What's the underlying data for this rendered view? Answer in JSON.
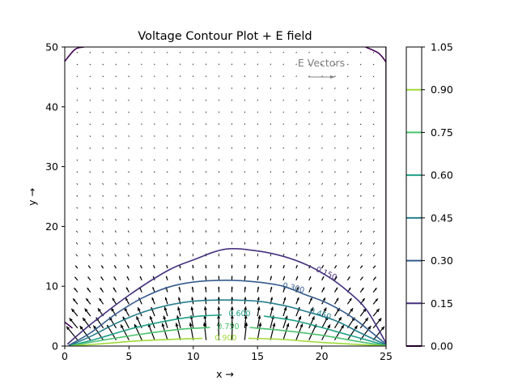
{
  "chart_data": {
    "type": "contour",
    "title": "Voltage Contour Plot + E field",
    "xlabel": "x →",
    "ylabel": "y →",
    "xlim": [
      0,
      25
    ],
    "ylim": [
      0,
      50
    ],
    "x_ticks": [
      "0",
      "5",
      "10",
      "15",
      "20",
      "25"
    ],
    "y_ticks": [
      "0",
      "10",
      "20",
      "30",
      "40",
      "50"
    ],
    "grid": false,
    "quiver_key_label": "E Vectors",
    "levels": [
      0.0,
      0.15,
      0.3,
      0.45,
      0.6,
      0.75,
      0.9
    ],
    "colorbar": {
      "range": [
        0.0,
        1.05
      ],
      "ticks": [
        "0.00",
        "0.15",
        "0.30",
        "0.45",
        "0.60",
        "0.75",
        "0.90",
        "1.05"
      ],
      "level_colors": [
        "#440154",
        "#46327e",
        "#365c8d",
        "#277f8e",
        "#1fa187",
        "#4ac16d",
        "#a0da39"
      ]
    },
    "contour_labels": [
      {
        "text": "0.150",
        "level": 0.15
      },
      {
        "text": "0.300",
        "level": 0.3
      },
      {
        "text": "0.450",
        "level": 0.45
      },
      {
        "text": "0.600",
        "level": 0.6
      },
      {
        "text": "0.750",
        "level": 0.75
      },
      {
        "text": "0.900",
        "level": 0.9
      }
    ],
    "contours": [
      {
        "level": 0.15,
        "color": "#46327e",
        "points": [
          [
            0.2,
            0.3
          ],
          [
            2,
            3.6
          ],
          [
            5,
            8.5
          ],
          [
            8,
            12.6
          ],
          [
            10,
            14.4
          ],
          [
            12.5,
            16.2
          ],
          [
            15,
            15.9
          ],
          [
            17,
            15
          ],
          [
            18.8,
            13.6
          ],
          [
            20.5,
            11.6
          ],
          [
            22,
            9.2
          ],
          [
            23.5,
            6
          ],
          [
            25,
            0.5
          ]
        ]
      },
      {
        "level": 0.3,
        "color": "#365c8d",
        "points": [
          [
            0.3,
            0.1
          ],
          [
            2,
            2.2
          ],
          [
            4,
            5.4
          ],
          [
            6,
            8
          ],
          [
            8,
            9.8
          ],
          [
            10,
            10.7
          ],
          [
            12.5,
            11
          ],
          [
            15,
            10.7
          ],
          [
            17,
            10
          ],
          [
            18.7,
            8.6
          ],
          [
            20.5,
            7.1
          ],
          [
            22.5,
            4.6
          ],
          [
            25,
            0.3
          ]
        ]
      },
      {
        "level": 0.45,
        "color": "#277f8e",
        "points": [
          [
            0.4,
            0.1
          ],
          [
            2,
            1.6
          ],
          [
            4,
            3.8
          ],
          [
            6,
            5.6
          ],
          [
            8,
            6.8
          ],
          [
            10,
            7.5
          ],
          [
            12.5,
            7.7
          ],
          [
            15,
            7.5
          ],
          [
            17,
            6.8
          ],
          [
            18.6,
            5.9
          ],
          [
            21,
            4.3
          ],
          [
            23,
            2.2
          ],
          [
            25,
            0.2
          ]
        ]
      },
      {
        "level": 0.6,
        "color": "#1fa187",
        "points": [
          [
            0.5,
            0.1
          ],
          [
            2.5,
            1.2
          ],
          [
            5,
            2.8
          ],
          [
            7,
            3.8
          ],
          [
            9,
            4.6
          ],
          [
            10.5,
            5
          ],
          [
            12.2,
            5.2
          ]
        ]
      },
      {
        "level": 0.6,
        "color": "#1fa187",
        "points": [
          [
            15.5,
            5
          ],
          [
            18,
            4.2
          ],
          [
            21,
            2.5
          ],
          [
            25,
            0.1
          ]
        ]
      },
      {
        "level": 0.75,
        "color": "#4ac16d",
        "points": [
          [
            0.5,
            0.05
          ],
          [
            3,
            1
          ],
          [
            6,
            2
          ],
          [
            9,
            2.8
          ],
          [
            11.3,
            3.1
          ]
        ]
      },
      {
        "level": 0.75,
        "color": "#4ac16d",
        "points": [
          [
            14.4,
            3.1
          ],
          [
            17,
            2.6
          ],
          [
            20,
            1.8
          ],
          [
            23,
            0.7
          ],
          [
            25,
            0.05
          ]
        ]
      },
      {
        "level": 0.9,
        "color": "#a0da39",
        "points": [
          [
            0.5,
            0.02
          ],
          [
            3,
            0.4
          ],
          [
            6,
            0.9
          ],
          [
            10.7,
            1.3
          ]
        ]
      },
      {
        "level": 0.9,
        "color": "#a0da39",
        "points": [
          [
            14.3,
            1.3
          ],
          [
            17,
            1.1
          ],
          [
            20,
            0.6
          ],
          [
            25,
            0.02
          ]
        ]
      },
      {
        "level": 0.0,
        "color": "#440154",
        "points": [
          [
            0,
            47.6
          ],
          [
            0.8,
            49.6
          ],
          [
            1.5,
            50
          ]
        ]
      },
      {
        "level": 0.0,
        "color": "#440154",
        "points": [
          [
            23.4,
            50
          ],
          [
            24.4,
            49
          ],
          [
            25,
            47.5
          ]
        ]
      },
      {
        "level": 0.0,
        "color": "#440154",
        "points": [
          [
            25,
            0.4
          ],
          [
            25,
            50
          ]
        ]
      },
      {
        "level": 0.0,
        "color": "#440154",
        "points": [
          [
            0,
            4
          ],
          [
            0.6,
            3
          ]
        ]
      }
    ],
    "field": {
      "description": "Electric field vectors pointing away from the bottom electrode (x between 0 and 25, y = 0), largest near the bottom edge and decaying with height.",
      "xs": [
        0,
        1,
        2,
        3,
        4,
        5,
        6,
        7,
        8,
        9,
        10,
        11,
        12,
        13,
        14,
        15,
        16,
        17,
        18,
        19,
        20,
        21,
        22,
        23,
        24,
        25
      ],
      "ys": [
        1,
        3,
        5,
        7,
        9,
        11,
        13,
        15,
        17,
        19,
        21,
        23,
        25,
        27,
        29,
        31,
        33,
        35,
        37,
        39,
        41,
        43,
        45,
        47,
        49
      ]
    }
  }
}
